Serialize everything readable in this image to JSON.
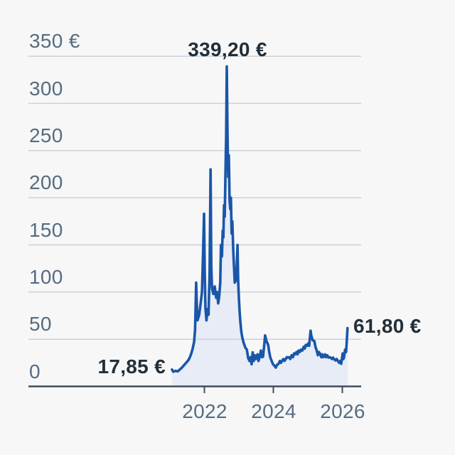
{
  "page": {
    "background": "#f7f7f8"
  },
  "chart_data": {
    "type": "area",
    "title": "",
    "currency_symbol": "€",
    "grid": true,
    "legend": false,
    "y_axis": {
      "range": [
        0,
        350
      ],
      "ticks": [
        {
          "value": 350,
          "label": "350 €"
        },
        {
          "value": 300,
          "label": "300"
        },
        {
          "value": 250,
          "label": "250"
        },
        {
          "value": 200,
          "label": "200"
        },
        {
          "value": 150,
          "label": "150"
        },
        {
          "value": 100,
          "label": "100"
        },
        {
          "value": 50,
          "label": "50"
        },
        {
          "value": 0,
          "label": "0"
        }
      ]
    },
    "x_axis": {
      "range": [
        2021.05,
        2026.55
      ],
      "ticks": [
        {
          "value": 2022,
          "label": "2022"
        },
        {
          "value": 2024,
          "label": "2024"
        },
        {
          "value": 2026,
          "label": "2026"
        }
      ]
    },
    "annotations": {
      "peak": {
        "text": "339,20 €",
        "year": 2022.65,
        "value": 339.2
      },
      "start": {
        "text": "17,85 €",
        "year": 2021.06,
        "value": 17.85
      },
      "last": {
        "text": "61,80 €",
        "year": 2026.15,
        "value": 61.8
      }
    },
    "colors": {
      "line": "#1a56a8",
      "area": "#e7ecf6",
      "grid": "#c9d2da",
      "axis": "#3d4f5c",
      "tick_label": "#566c80",
      "annotation": "#232f38",
      "background": "#f7f7f8"
    },
    "series": [
      {
        "name": "price-eur",
        "points": [
          [
            2021.06,
            17.85
          ],
          [
            2021.1,
            15.5
          ],
          [
            2021.16,
            16.5
          ],
          [
            2021.23,
            16
          ],
          [
            2021.29,
            18
          ],
          [
            2021.35,
            20
          ],
          [
            2021.41,
            22.5
          ],
          [
            2021.47,
            25
          ],
          [
            2021.54,
            28
          ],
          [
            2021.58,
            31
          ],
          [
            2021.62,
            35
          ],
          [
            2021.66,
            40
          ],
          [
            2021.7,
            47
          ],
          [
            2021.73,
            60
          ],
          [
            2021.76,
            110
          ],
          [
            2021.78,
            88
          ],
          [
            2021.8,
            70
          ],
          [
            2021.85,
            76
          ],
          [
            2021.89,
            88
          ],
          [
            2021.93,
            100
          ],
          [
            2021.96,
            140
          ],
          [
            2021.99,
            183
          ],
          [
            2022.01,
            120
          ],
          [
            2022.03,
            83
          ],
          [
            2022.06,
            70
          ],
          [
            2022.09,
            82
          ],
          [
            2022.12,
            76
          ],
          [
            2022.15,
            120
          ],
          [
            2022.18,
            230
          ],
          [
            2022.2,
            128
          ],
          [
            2022.22,
            104
          ],
          [
            2022.26,
            98
          ],
          [
            2022.3,
            106
          ],
          [
            2022.34,
            94
          ],
          [
            2022.37,
            100
          ],
          [
            2022.4,
            88
          ],
          [
            2022.43,
            96
          ],
          [
            2022.46,
            110
          ],
          [
            2022.48,
            150
          ],
          [
            2022.51,
            138
          ],
          [
            2022.53,
            165
          ],
          [
            2022.55,
            158
          ],
          [
            2022.57,
            192
          ],
          [
            2022.59,
            180
          ],
          [
            2022.61,
            225
          ],
          [
            2022.63,
            265
          ],
          [
            2022.65,
            339.2
          ],
          [
            2022.67,
            268
          ],
          [
            2022.69,
            222
          ],
          [
            2022.71,
            245
          ],
          [
            2022.73,
            198
          ],
          [
            2022.75,
            188
          ],
          [
            2022.77,
            200
          ],
          [
            2022.79,
            162
          ],
          [
            2022.81,
            175
          ],
          [
            2022.84,
            142
          ],
          [
            2022.86,
            126
          ],
          [
            2022.88,
            110
          ],
          [
            2022.9,
            122
          ],
          [
            2022.92,
            112
          ],
          [
            2022.94,
            130
          ],
          [
            2022.96,
            150
          ],
          [
            2022.98,
            112
          ],
          [
            2023.0,
            94
          ],
          [
            2023.02,
            80
          ],
          [
            2023.04,
            70
          ],
          [
            2023.07,
            58
          ],
          [
            2023.1,
            52
          ],
          [
            2023.14,
            46
          ],
          [
            2023.19,
            41
          ],
          [
            2023.23,
            39
          ],
          [
            2023.27,
            30
          ],
          [
            2023.31,
            27
          ],
          [
            2023.34,
            31
          ],
          [
            2023.37,
            23.5
          ],
          [
            2023.4,
            36
          ],
          [
            2023.43,
            27
          ],
          [
            2023.46,
            33
          ],
          [
            2023.49,
            29
          ],
          [
            2023.54,
            34
          ],
          [
            2023.57,
            27
          ],
          [
            2023.6,
            31
          ],
          [
            2023.64,
            38
          ],
          [
            2023.67,
            31
          ],
          [
            2023.7,
            31.5
          ],
          [
            2023.74,
            46
          ],
          [
            2023.76,
            54
          ],
          [
            2023.8,
            48
          ],
          [
            2023.85,
            44
          ],
          [
            2023.88,
            36.5
          ],
          [
            2023.91,
            31
          ],
          [
            2023.95,
            27
          ],
          [
            2023.99,
            23.5
          ],
          [
            2024.03,
            22
          ],
          [
            2024.07,
            20
          ],
          [
            2024.11,
            23
          ],
          [
            2024.15,
            24
          ],
          [
            2024.19,
            27
          ],
          [
            2024.22,
            25
          ],
          [
            2024.26,
            27.5
          ],
          [
            2024.29,
            29
          ],
          [
            2024.32,
            27
          ],
          [
            2024.36,
            29
          ],
          [
            2024.39,
            31
          ],
          [
            2024.42,
            30.5
          ],
          [
            2024.46,
            31
          ],
          [
            2024.49,
            29
          ],
          [
            2024.53,
            33
          ],
          [
            2024.57,
            31
          ],
          [
            2024.6,
            35
          ],
          [
            2024.63,
            34
          ],
          [
            2024.67,
            36.5
          ],
          [
            2024.7,
            34
          ],
          [
            2024.73,
            38
          ],
          [
            2024.77,
            36.5
          ],
          [
            2024.8,
            39
          ],
          [
            2024.84,
            38
          ],
          [
            2024.88,
            42
          ],
          [
            2024.91,
            40
          ],
          [
            2024.94,
            44
          ],
          [
            2024.98,
            43
          ],
          [
            2025.01,
            45.5
          ],
          [
            2025.04,
            43
          ],
          [
            2025.06,
            51.5
          ],
          [
            2025.08,
            59
          ],
          [
            2025.1,
            54
          ],
          [
            2025.14,
            49
          ],
          [
            2025.19,
            48
          ],
          [
            2025.22,
            42
          ],
          [
            2025.25,
            39
          ],
          [
            2025.29,
            33
          ],
          [
            2025.32,
            36.5
          ],
          [
            2025.35,
            35
          ],
          [
            2025.39,
            31
          ],
          [
            2025.42,
            34
          ],
          [
            2025.45,
            31
          ],
          [
            2025.5,
            34
          ],
          [
            2025.53,
            31
          ],
          [
            2025.56,
            33
          ],
          [
            2025.6,
            30.5
          ],
          [
            2025.63,
            31
          ],
          [
            2025.66,
            30.5
          ],
          [
            2025.7,
            29
          ],
          [
            2025.73,
            30.5
          ],
          [
            2025.76,
            29
          ],
          [
            2025.8,
            27.5
          ],
          [
            2025.84,
            29
          ],
          [
            2025.87,
            27
          ],
          [
            2025.91,
            25
          ],
          [
            2025.94,
            27
          ],
          [
            2025.97,
            24
          ],
          [
            2026.01,
            35
          ],
          [
            2026.03,
            29
          ],
          [
            2026.05,
            31
          ],
          [
            2026.08,
            39
          ],
          [
            2026.11,
            36.5
          ],
          [
            2026.13,
            48
          ],
          [
            2026.15,
            61.8
          ]
        ]
      }
    ]
  }
}
